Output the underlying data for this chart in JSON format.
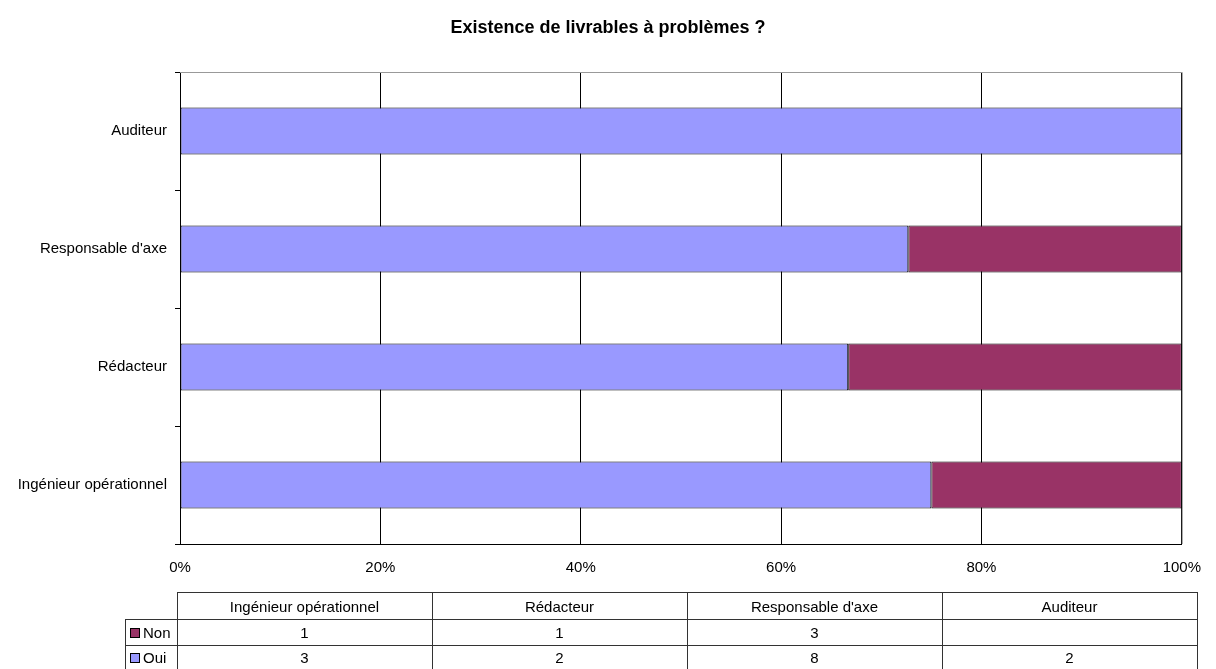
{
  "chart_data": [
    {
      "type": "bar",
      "title": "Existence de livrables à problèmes ?",
      "orientation": "horizontal",
      "stacked": true,
      "categories": [
        "Auditeur",
        "Responsable d'axe",
        "Rédacteur",
        "Ingénieur opérationnel"
      ],
      "series": [
        {
          "color": "#9999ff",
          "values": [
            100,
            72.7,
            66.7,
            75
          ]
        },
        {
          "color": "#993366",
          "values": [
            null,
            27.3,
            33.3,
            25
          ]
        }
      ],
      "xlim": [
        0,
        100
      ],
      "xticks": [
        {
          "value": 0,
          "label": "0%"
        },
        {
          "value": 20,
          "label": "20%"
        },
        {
          "value": 40,
          "label": "40%"
        },
        {
          "value": 60,
          "label": "60%"
        },
        {
          "value": 80,
          "label": "80%"
        },
        {
          "value": 100,
          "label": "100%"
        }
      ],
      "grid": "x"
    },
    {
      "type": "other",
      "categories": [
        "Ingénieur opérationnel",
        "Rédacteur",
        "Responsable d'axe",
        "Auditeur"
      ],
      "series": [
        {
          "name": "Non",
          "color": "#993366",
          "values": [
            1,
            1,
            3,
            null
          ]
        },
        {
          "name": "Oui",
          "color": "#9999ff",
          "values": [
            3,
            2,
            8,
            2
          ]
        }
      ],
      "legend": "left",
      "data_labels": true
    }
  ]
}
